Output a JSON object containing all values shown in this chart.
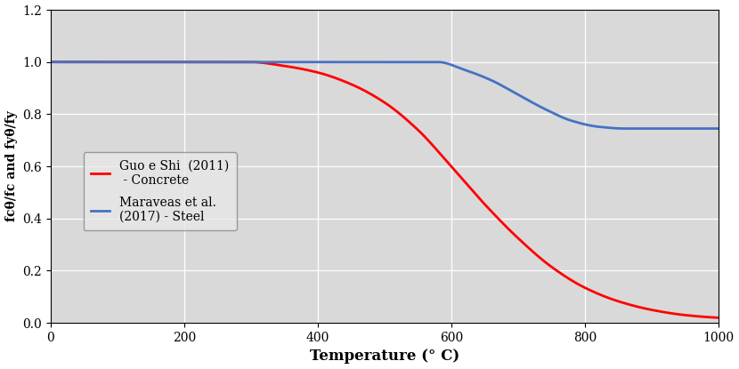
{
  "title": "",
  "xlabel": "Temperature (° C)",
  "ylabel": "fcθ/fc and fyθ/fy",
  "xlim": [
    0,
    1000
  ],
  "ylim": [
    0,
    1.2
  ],
  "yticks": [
    0,
    0.2,
    0.4,
    0.6,
    0.8,
    1.0,
    1.2
  ],
  "xticks": [
    0,
    200,
    400,
    600,
    800,
    1000
  ],
  "background_color": "#d9d9d9",
  "concrete_color": "#ff0000",
  "steel_color": "#4472c4",
  "concrete_label": "Guo e Shi  (2011)\n - Concrete",
  "steel_label": "Maraveas et al.\n(2017) - Steel",
  "concrete_T": [
    0,
    200,
    300,
    350,
    400,
    450,
    500,
    550,
    600,
    650,
    700,
    750,
    800,
    850,
    900,
    950,
    1000
  ],
  "concrete_Y": [
    1.0,
    1.0,
    1.0,
    0.985,
    0.96,
    0.915,
    0.845,
    0.74,
    0.6,
    0.455,
    0.325,
    0.215,
    0.135,
    0.083,
    0.05,
    0.03,
    0.02
  ],
  "steel_T": [
    0,
    200,
    400,
    500,
    560,
    580,
    620,
    660,
    700,
    740,
    780,
    820,
    860,
    900,
    950,
    1000
  ],
  "steel_Y": [
    1.0,
    1.0,
    1.0,
    1.0,
    1.0,
    1.0,
    0.97,
    0.93,
    0.875,
    0.82,
    0.775,
    0.752,
    0.745,
    0.745,
    0.745,
    0.745
  ],
  "linewidth": 2.0
}
